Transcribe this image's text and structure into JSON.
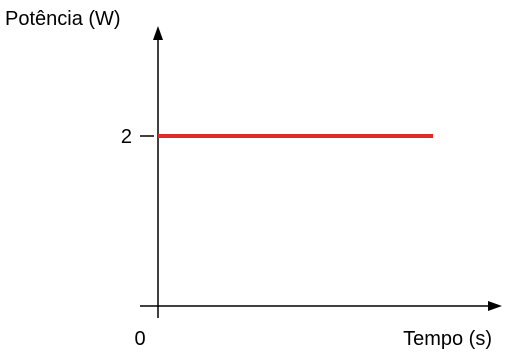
{
  "chart_data": {
    "type": "line",
    "title": "",
    "xlabel": "Tempo (s)",
    "ylabel": "Potência (W)",
    "x_tick_labels": [
      "0"
    ],
    "y_tick_labels": [
      "2"
    ],
    "ylim": [
      0,
      3.5
    ],
    "grid": false,
    "legend": "none",
    "series": [
      {
        "x": [
          0,
          1
        ],
        "y": [
          2,
          2
        ],
        "color": "#e02b2b"
      }
    ],
    "axis_color": "#000000"
  }
}
